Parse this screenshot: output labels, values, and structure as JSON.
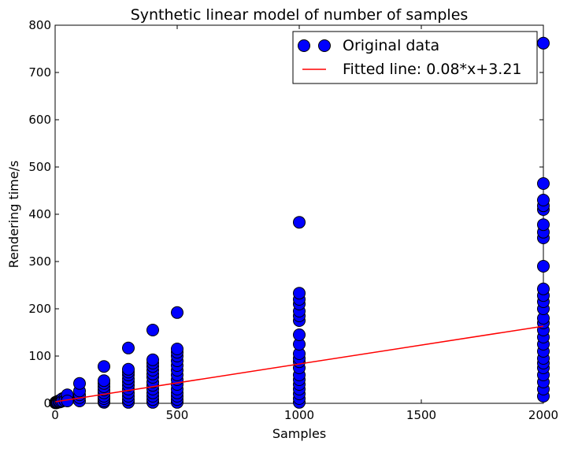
{
  "chart_data": {
    "type": "scatter",
    "title": "Synthetic linear model of number of samples",
    "xlabel": "Samples",
    "ylabel": "Rendering time/s",
    "xlim": [
      0,
      2000
    ],
    "ylim": [
      0,
      800
    ],
    "x_ticks": [
      0,
      500,
      1000,
      1500,
      2000
    ],
    "y_ticks": [
      0,
      100,
      200,
      300,
      400,
      500,
      600,
      700,
      800
    ],
    "grid": false,
    "legend_position": "top-right",
    "colors": {
      "points": "#0000ff",
      "line": "#ff0000"
    },
    "series": [
      {
        "name": "Original data",
        "kind": "scatter",
        "points": [
          [
            1,
            1
          ],
          [
            2,
            2
          ],
          [
            3,
            1
          ],
          [
            5,
            3
          ],
          [
            5,
            1
          ],
          [
            8,
            2
          ],
          [
            10,
            4
          ],
          [
            10,
            2
          ],
          [
            15,
            5
          ],
          [
            15,
            3
          ],
          [
            20,
            6
          ],
          [
            20,
            3
          ],
          [
            25,
            8
          ],
          [
            25,
            4
          ],
          [
            30,
            10
          ],
          [
            30,
            5
          ],
          [
            40,
            12
          ],
          [
            40,
            6
          ],
          [
            50,
            15
          ],
          [
            50,
            8
          ],
          [
            50,
            18
          ],
          [
            50,
            5
          ],
          [
            100,
            5
          ],
          [
            100,
            12
          ],
          [
            100,
            18
          ],
          [
            100,
            26
          ],
          [
            100,
            42
          ],
          [
            200,
            2
          ],
          [
            200,
            5
          ],
          [
            200,
            10
          ],
          [
            200,
            15
          ],
          [
            200,
            22
          ],
          [
            200,
            28
          ],
          [
            200,
            35
          ],
          [
            200,
            42
          ],
          [
            200,
            48
          ],
          [
            200,
            78
          ],
          [
            300,
            2
          ],
          [
            300,
            8
          ],
          [
            300,
            15
          ],
          [
            300,
            22
          ],
          [
            300,
            30
          ],
          [
            300,
            38
          ],
          [
            300,
            45
          ],
          [
            300,
            52
          ],
          [
            300,
            60
          ],
          [
            300,
            66
          ],
          [
            300,
            72
          ],
          [
            300,
            117
          ],
          [
            400,
            2
          ],
          [
            400,
            8
          ],
          [
            400,
            15
          ],
          [
            400,
            22
          ],
          [
            400,
            30
          ],
          [
            400,
            38
          ],
          [
            400,
            45
          ],
          [
            400,
            55
          ],
          [
            400,
            62
          ],
          [
            400,
            70
          ],
          [
            400,
            78
          ],
          [
            400,
            85
          ],
          [
            400,
            92
          ],
          [
            400,
            155
          ],
          [
            500,
            2
          ],
          [
            500,
            8
          ],
          [
            500,
            15
          ],
          [
            500,
            22
          ],
          [
            500,
            30
          ],
          [
            500,
            40
          ],
          [
            500,
            50
          ],
          [
            500,
            60
          ],
          [
            500,
            70
          ],
          [
            500,
            80
          ],
          [
            500,
            90
          ],
          [
            500,
            100
          ],
          [
            500,
            108
          ],
          [
            500,
            115
          ],
          [
            500,
            192
          ],
          [
            1000,
            2
          ],
          [
            1000,
            10
          ],
          [
            1000,
            20
          ],
          [
            1000,
            30
          ],
          [
            1000,
            40
          ],
          [
            1000,
            50
          ],
          [
            1000,
            60
          ],
          [
            1000,
            75
          ],
          [
            1000,
            88
          ],
          [
            1000,
            95
          ],
          [
            1000,
            105
          ],
          [
            1000,
            125
          ],
          [
            1000,
            145
          ],
          [
            1000,
            175
          ],
          [
            1000,
            185
          ],
          [
            1000,
            195
          ],
          [
            1000,
            210
          ],
          [
            1000,
            220
          ],
          [
            1000,
            233
          ],
          [
            1000,
            383
          ],
          [
            2000,
            15
          ],
          [
            2000,
            30
          ],
          [
            2000,
            45
          ],
          [
            2000,
            60
          ],
          [
            2000,
            75
          ],
          [
            2000,
            85
          ],
          [
            2000,
            95
          ],
          [
            2000,
            110
          ],
          [
            2000,
            125
          ],
          [
            2000,
            140
          ],
          [
            2000,
            155
          ],
          [
            2000,
            170
          ],
          [
            2000,
            180
          ],
          [
            2000,
            200
          ],
          [
            2000,
            215
          ],
          [
            2000,
            228
          ],
          [
            2000,
            242
          ],
          [
            2000,
            290
          ],
          [
            2000,
            350
          ],
          [
            2000,
            362
          ],
          [
            2000,
            378
          ],
          [
            2000,
            410
          ],
          [
            2000,
            418
          ],
          [
            2000,
            430
          ],
          [
            2000,
            465
          ],
          [
            2000,
            762
          ]
        ]
      },
      {
        "name": "Fitted line: 0.08*x+3.21",
        "kind": "line",
        "slope": 0.08,
        "intercept": 3.21,
        "x_range": [
          1,
          2000
        ]
      }
    ]
  }
}
